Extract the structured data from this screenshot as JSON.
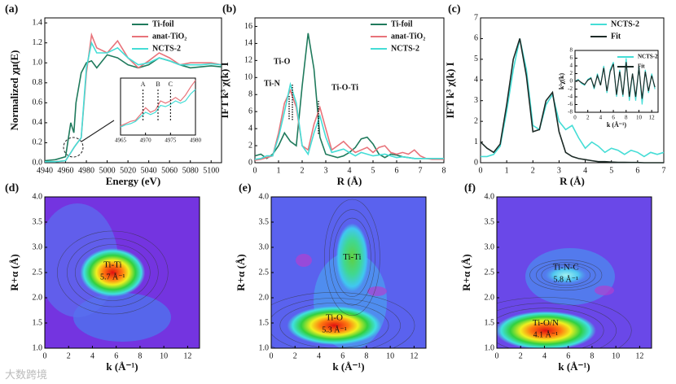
{
  "chart_data": [
    {
      "type": "line",
      "panel_label": "(a)",
      "xlabel": "Energy (eV)",
      "ylabel": "Normalized χμ(E)",
      "xlim": [
        4940,
        5110
      ],
      "xticks": [
        4940,
        4960,
        4980,
        5000,
        5020,
        5040,
        5060,
        5080,
        5100
      ],
      "ylim": [
        0,
        1.45
      ],
      "yticks": [
        {
          "value": 0,
          "label": "0.0"
        },
        0.2,
        0.4,
        0.6,
        0.8,
        {
          "value": 1,
          "label": "1.0"
        },
        1.2,
        1.4
      ],
      "legend": "upper right",
      "x": [
        4940,
        4950,
        4960,
        4965,
        4968,
        4970,
        4975,
        4980,
        4985,
        4990,
        5000,
        5010,
        5020,
        5030,
        5040,
        5050,
        5060,
        5070,
        5080,
        5090,
        5100,
        5110
      ],
      "series": [
        {
          "name": "Ti-foil",
          "color": "#1f7a5c",
          "values": [
            0.02,
            0.03,
            0.06,
            0.4,
            0.3,
            0.6,
            0.9,
            1.0,
            1.02,
            0.95,
            1.08,
            1.05,
            0.98,
            0.95,
            0.98,
            1.05,
            1.02,
            0.98,
            0.95,
            0.96,
            0.97,
            0.96
          ]
        },
        {
          "name": "anat-TiO₂",
          "color": "#e8737a",
          "values": [
            0.01,
            0.01,
            0.02,
            0.1,
            0.15,
            0.18,
            0.25,
            0.9,
            1.28,
            1.15,
            1.1,
            1.22,
            1.05,
            0.95,
            1.02,
            1.1,
            1.05,
            0.98,
            1.0,
            1.0,
            1.0,
            0.98
          ]
        },
        {
          "name": "NCTS-2",
          "color": "#45ddd6",
          "values": [
            0.01,
            0.01,
            0.02,
            0.1,
            0.15,
            0.18,
            0.25,
            0.95,
            1.2,
            1.1,
            1.1,
            1.15,
            1.05,
            0.98,
            1.0,
            1.05,
            1.02,
            0.98,
            0.98,
            0.98,
            0.99,
            0.98
          ]
        }
      ],
      "inset": {
        "xlim": [
          4965,
          4980
        ],
        "xticks": [
          4965,
          4970,
          4975,
          4980
        ],
        "ylim": [
          0,
          0.5
        ],
        "x": [
          4965,
          4966,
          4967,
          4968,
          4969,
          4970,
          4971,
          4972,
          4973,
          4974,
          4975,
          4976,
          4977,
          4978,
          4979,
          4980
        ],
        "series": [
          {
            "color": "#e8737a",
            "values": [
              0.08,
              0.1,
              0.12,
              0.13,
              0.18,
              0.24,
              0.2,
              0.22,
              0.3,
              0.28,
              0.3,
              0.33,
              0.3,
              0.35,
              0.42,
              0.48
            ]
          },
          {
            "color": "#45ddd6",
            "values": [
              0.07,
              0.09,
              0.1,
              0.12,
              0.16,
              0.2,
              0.18,
              0.2,
              0.26,
              0.25,
              0.27,
              0.3,
              0.28,
              0.3,
              0.36,
              0.4
            ]
          }
        ],
        "peak_labels": [
          "A",
          "B",
          "C"
        ],
        "peak_x": [
          4969.5,
          4972.5,
          4975
        ]
      }
    },
    {
      "type": "line",
      "panel_label": "(b)",
      "xlabel": "R (Å)",
      "ylabel": "IFT k³ χ(k) I",
      "xlim": [
        0,
        8
      ],
      "xticks": [
        0,
        1,
        2,
        3,
        4,
        5,
        6,
        7,
        8
      ],
      "ylim": [
        0,
        17
      ],
      "yticks": [
        0,
        2,
        4,
        6,
        8,
        10,
        12,
        14,
        16
      ],
      "legend": "upper right",
      "annotations": [
        "Ti-O",
        "Ti-N",
        "Ti-O-Ti"
      ],
      "x": [
        0,
        0.25,
        0.5,
        0.75,
        1,
        1.25,
        1.5,
        1.75,
        2,
        2.25,
        2.5,
        2.75,
        3,
        3.25,
        3.5,
        3.75,
        4,
        4.25,
        4.5,
        4.75,
        5,
        5.25,
        5.5,
        5.75,
        6,
        6.25,
        6.5,
        6.75,
        7,
        7.25,
        7.5,
        7.75,
        8
      ],
      "series": [
        {
          "name": "Ti-foil",
          "color": "#1f7a5c",
          "values": [
            0.8,
            1,
            0.5,
            1,
            2,
            3.5,
            2.5,
            2,
            9,
            15.2,
            11,
            3,
            1,
            0.8,
            0.6,
            0.8,
            1.2,
            1.8,
            2.8,
            3,
            2.2,
            1,
            0.6,
            1,
            0.9,
            0.7,
            0.6,
            0.5,
            0.5,
            0.5,
            0.5,
            0.5,
            0.5
          ]
        },
        {
          "name": "anat-TiO₂",
          "color": "#e8737a",
          "values": [
            0.3,
            0.4,
            0.6,
            0.8,
            3.5,
            7,
            8.5,
            6.5,
            2,
            1.5,
            4.5,
            6.5,
            4,
            1.5,
            2,
            2.5,
            1.8,
            1.2,
            1.5,
            1.8,
            1.2,
            1.8,
            2,
            1.2,
            1,
            1.2,
            1,
            1.5,
            0.8,
            0.5,
            0.4,
            0.4,
            0.4
          ]
        },
        {
          "name": "NCTS-2",
          "color": "#45ddd6",
          "values": [
            0.4,
            0.5,
            0.8,
            0.8,
            3,
            6,
            9.2,
            7,
            2,
            1,
            3.5,
            5.5,
            3,
            1.2,
            1.4,
            1.6,
            1.2,
            0.8,
            1.2,
            1,
            0.8,
            0.9,
            1,
            0.8,
            0.6,
            0.7,
            0.6,
            0.5,
            0.5,
            0.5,
            0.5,
            0.5,
            0.5
          ]
        }
      ]
    },
    {
      "type": "line",
      "panel_label": "(c)",
      "xlabel": "R (Å)",
      "ylabel": "IFT k³ χ(k) I",
      "xlim": [
        0,
        7
      ],
      "xticks": [
        0,
        1,
        2,
        3,
        4,
        5,
        6,
        7
      ],
      "ylim": [
        0,
        7
      ],
      "yticks": [
        0,
        1,
        2,
        3,
        4,
        5,
        6,
        7
      ],
      "legend": "upper right",
      "x": [
        0,
        0.25,
        0.5,
        0.75,
        1,
        1.25,
        1.5,
        1.75,
        2,
        2.25,
        2.5,
        2.75,
        3,
        3.25,
        3.5,
        3.75,
        4,
        4.25,
        4.5,
        4.75,
        5,
        5.25,
        5.5,
        5.75,
        6,
        6.25,
        6.5,
        6.75,
        7
      ],
      "series": [
        {
          "name": "NCTS-2",
          "color": "#45ddd6",
          "values": [
            0.3,
            0.3,
            0.4,
            0.8,
            2.5,
            4.5,
            6,
            4.5,
            1.8,
            1.6,
            2.8,
            3.3,
            2,
            1.6,
            1.8,
            1.2,
            0.7,
            1,
            0.8,
            0.5,
            0.7,
            0.6,
            0.4,
            0.6,
            0.5,
            0.3,
            0.5,
            0.4,
            0.5
          ]
        },
        {
          "name": "Fit",
          "color": "#1d2b27",
          "values": [
            1,
            0.7,
            0.5,
            0.9,
            2.8,
            5,
            6,
            4.2,
            1.5,
            1.6,
            3,
            3.4,
            1.5,
            0.5,
            0.3,
            0.2,
            0.15,
            0.1,
            0.05,
            0.05,
            0.03,
            0.02,
            0.02,
            0.01,
            0.01,
            0,
            0,
            0,
            0
          ]
        }
      ],
      "inset": {
        "xlabel": "k (Å⁻¹)",
        "ylabel": "k³χ(k)",
        "xlim": [
          0,
          13
        ],
        "xticks": [
          0,
          2,
          4,
          6,
          8,
          10,
          12
        ],
        "ylim": [
          -8,
          8
        ],
        "yticks": [
          -8,
          -6,
          -4,
          -2,
          0,
          2,
          4,
          6,
          8
        ],
        "x": [
          0,
          0.5,
          1,
          1.5,
          2,
          2.5,
          3,
          3.5,
          4,
          4.5,
          5,
          5.5,
          6,
          6.5,
          7,
          7.5,
          8,
          8.5,
          9,
          9.5,
          10,
          10.5,
          11,
          11.5,
          12,
          12.5
        ],
        "series": [
          {
            "name": "NCTS-2",
            "color": "#45ddd6",
            "values": [
              0,
              0.5,
              -0.5,
              -1,
              0.5,
              1,
              -2,
              2,
              -1,
              4,
              -3,
              3,
              5,
              -4,
              3,
              -4,
              6,
              -5,
              2,
              -5,
              4,
              -6,
              3,
              -3,
              2,
              -2
            ]
          },
          {
            "name": "Fit",
            "color": "#1d2b27",
            "values": [
              0,
              0.3,
              -0.3,
              -0.8,
              0.3,
              0.8,
              -1.5,
              1.5,
              -1,
              3.5,
              -2.5,
              2.5,
              4.5,
              -3.5,
              2.5,
              -3.5,
              5,
              -4,
              2,
              -4,
              3.5,
              -4.5,
              2.5,
              -2.5,
              1.5,
              -1.5
            ]
          }
        ]
      }
    },
    {
      "type": "contour",
      "panel_label": "(d)",
      "xlabel": "k (Å⁻¹)",
      "ylabel": "R+α (Å)",
      "background": "#7434e0",
      "xlim": [
        0,
        13
      ],
      "xticks": [
        0,
        2,
        4,
        6,
        8,
        10,
        12
      ],
      "ylim": [
        1,
        4
      ],
      "yticks": [
        {
          "value": 1,
          "label": "1.0"
        },
        1.5,
        {
          "value": 2,
          "label": "2.0"
        },
        2.5,
        {
          "value": 3,
          "label": "3.0"
        },
        3.5,
        {
          "value": 4,
          "label": "4.0"
        }
      ],
      "peaks": [
        {
          "name": "Ti-Ti",
          "k": 5.7,
          "k_label": "5.7 Å⁻¹",
          "r": 2.5
        }
      ]
    },
    {
      "type": "contour",
      "panel_label": "(e)",
      "xlabel": "k (Å⁻¹)",
      "ylabel": "R+α (Å)",
      "background": "#5a62ee",
      "xlim": [
        0,
        13
      ],
      "xticks": [
        0,
        2,
        4,
        6,
        8,
        10,
        12
      ],
      "ylim": [
        1,
        4
      ],
      "yticks": [
        {
          "value": 1,
          "label": "1.0"
        },
        1.5,
        {
          "value": 2,
          "label": "2.0"
        },
        2.5,
        {
          "value": 3,
          "label": "3.0"
        },
        3.5,
        {
          "value": 4,
          "label": "4.0"
        }
      ],
      "peaks": [
        {
          "name": "Ti-O",
          "k": 5.3,
          "k_label": "5.3 Å⁻¹",
          "r": 1.45
        },
        {
          "name": "Ti-Ti",
          "k": 6.8,
          "r": 2.8
        }
      ]
    },
    {
      "type": "contour",
      "panel_label": "(f)",
      "xlabel": "k (Å⁻¹)",
      "ylabel": "R+α (Å)",
      "background": "#6a48e8",
      "xlim": [
        0,
        13
      ],
      "xticks": [
        0,
        2,
        4,
        6,
        8,
        10,
        12
      ],
      "ylim": [
        1,
        4
      ],
      "yticks": [
        {
          "value": 1,
          "label": "1.0"
        },
        1.5,
        {
          "value": 2,
          "label": "2.0"
        },
        2.5,
        {
          "value": 3,
          "label": "3.0"
        },
        3.5,
        {
          "value": 4,
          "label": "4.0"
        }
      ],
      "peaks": [
        {
          "name": "Ti-N-C",
          "k": 5.8,
          "k_label": "5.8 Å⁻¹",
          "r": 2.45
        },
        {
          "name": "Ti-O/N",
          "k": 4.1,
          "k_label": "4.1 Å⁻¹",
          "r": 1.35
        }
      ]
    }
  ],
  "watermark": "大数跨境"
}
